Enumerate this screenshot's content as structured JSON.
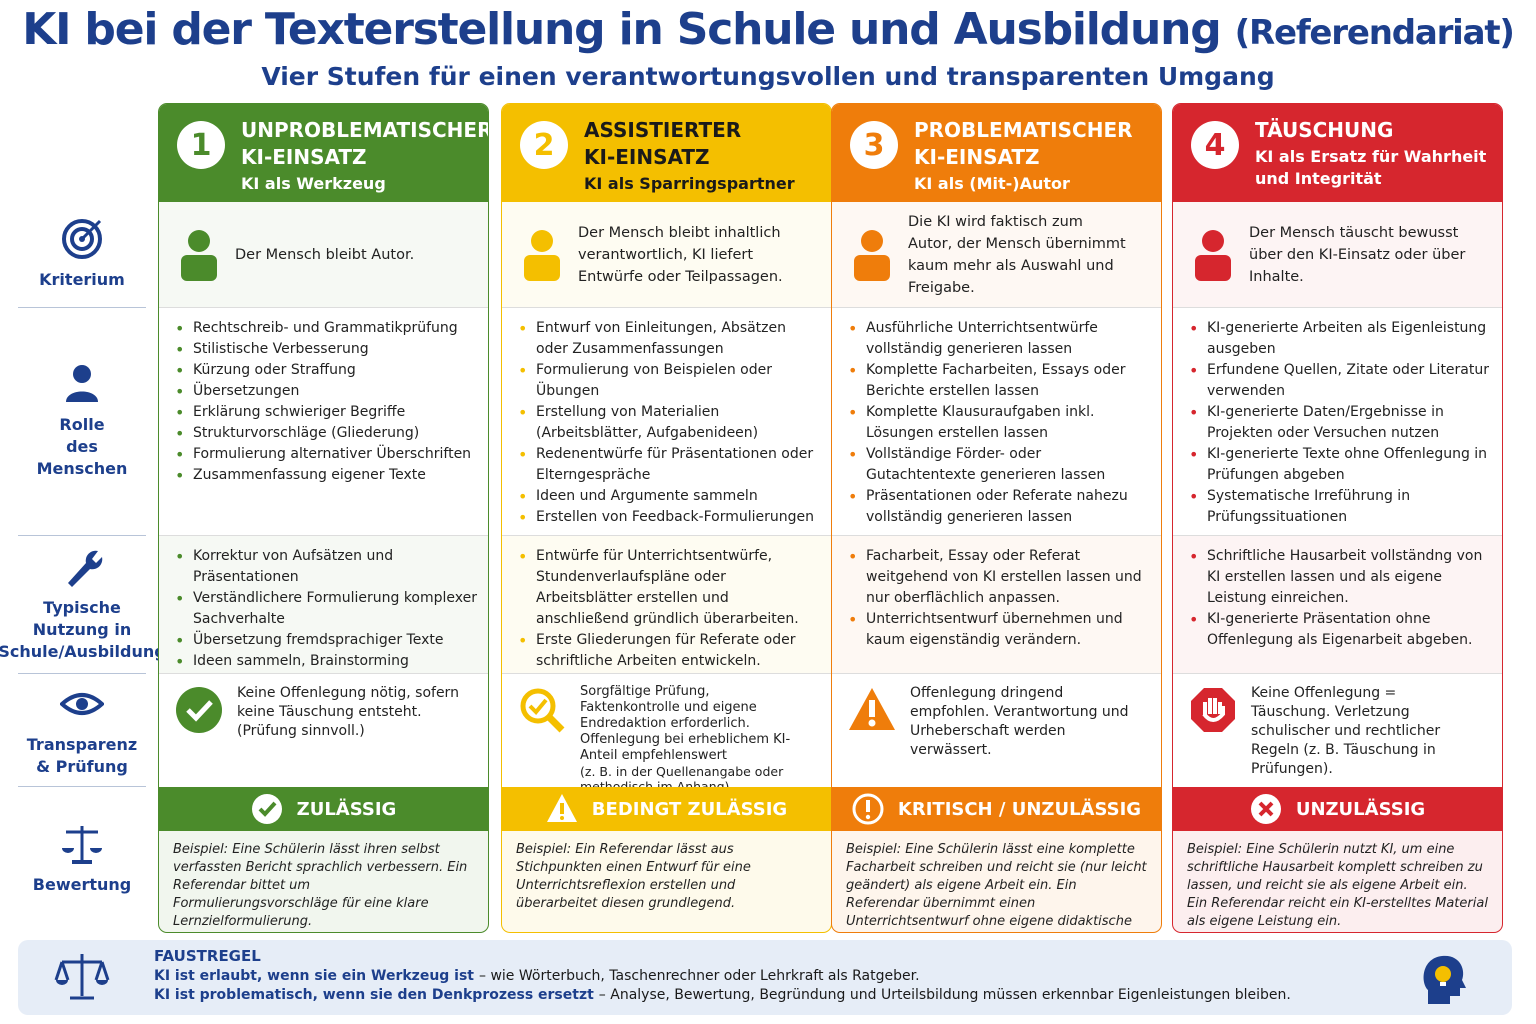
{
  "header": {
    "title": "KI bei der Texterstellung in Schule und Ausbildung",
    "title_suffix": "(Referendariat)",
    "subtitle": "Vier Stufen für einen verantwortungsvollen und transparenten Umgang"
  },
  "row_labels": [
    [
      "Kriterium"
    ],
    [
      "Rolle",
      "des Menschen"
    ],
    [
      "Typische",
      "Nutzung in",
      "Schule/Ausbildung"
    ],
    [
      "Transparenz",
      "& Prüfung"
    ],
    [
      "Bewertung"
    ]
  ],
  "columns": [
    {
      "number": "1",
      "color": "#4b8b2b",
      "header_text_color": "#ffffff",
      "title": [
        "UNPROBLEMATISCHER",
        "KI-EINSATZ"
      ],
      "subtitle": "KI als Werkzeug",
      "criterion": "Der Mensch bleibt Autor.",
      "roles": [
        "Rechtschreib- und Grammatikprüfung",
        "Stilistische Verbesserung",
        "Kürzung oder Straffung",
        "Übersetzungen",
        "Erklärung schwieriger Begriffe",
        "Strukturvorschläge (Gliederung)",
        "Formulierung alternativer Überschriften",
        "Zusammenfassung eigener Texte"
      ],
      "usage": [
        "Korrektur von Aufsätzen und Präsentationen",
        "Verständlichere Formulierung komplexer Sachverhalte",
        "Übersetzung fremdsprachiger Texte",
        "Ideen sammeln, Brainstorming"
      ],
      "transparency": [
        "Keine Offenlegung nötig, sofern keine Täuschung entsteht.",
        "(Prüfung sinnvoll.)"
      ],
      "verdict": "ZULÄSSIG",
      "example": "Beispiel: Eine Schülerin lässt ihren selbst verfassten Bericht sprachlich verbessern. Ein Referendar bittet um Formulierungsvorschläge für eine klare Lernzielformulierung."
    },
    {
      "number": "2",
      "color": "#f4bf00",
      "header_text_color": "#1a1a1a",
      "title": [
        "ASSISTIERTER",
        "KI-EINSATZ"
      ],
      "subtitle": "KI als Sparringspartner",
      "criterion": "Der Mensch bleibt inhaltlich verantwortlich, KI liefert Entwürfe oder Teilpassagen.",
      "roles": [
        "Entwurf von Einleitungen, Absätzen oder Zusammenfassungen",
        "Formulierung von Beispielen oder Übungen",
        "Erstellung von Materialien (Arbeitsblätter, Aufgabenideen)",
        "Redenentwürfe für Präsentationen oder Elterngespräche",
        "Ideen und Argumente sammeln",
        "Erstellen von Feedback-Formulierungen"
      ],
      "usage": [
        "Entwürfe für Unterrichtsentwürfe, Stundenverlaufspläne oder Arbeitsblätter erstellen und anschließend gründlich überarbeiten.",
        "Erste Gliederungen für Referate oder schriftliche Arbeiten entwickeln."
      ],
      "transparency": [
        "Sorgfältige Prüfung, Faktenkontrolle und eigene Endredaktion erforderlich. Offenlegung bei erheblichem KI-Anteil empfehlenswert",
        "(z. B. in der Quellenangabe oder methodisch im Anhang)."
      ],
      "verdict": "BEDINGT ZULÄSSIG",
      "example": "Beispiel: Ein Referendar lässt aus Stichpunkten einen Entwurf für eine Unterrichtsreflexion erstellen und überarbeitet diesen grundlegend."
    },
    {
      "number": "3",
      "color": "#ef7d0b",
      "header_text_color": "#ffffff",
      "title": [
        "PROBLEMATISCHER",
        "KI-EINSATZ"
      ],
      "subtitle": "KI als (Mit-)Autor",
      "criterion": "Die KI wird faktisch zum Autor, der Mensch übernimmt kaum mehr als Auswahl und Freigabe.",
      "roles": [
        "Ausführliche Unterrichtsentwürfe vollständig generieren lassen",
        "Komplette Facharbeiten, Essays oder Berichte erstellen lassen",
        "Komplette Klausuraufgaben inkl. Lösungen erstellen lassen",
        "Vollständige Förder- oder Gutachtentexte generieren lassen",
        "Präsentationen oder Referate nahezu vollständig generieren lassen"
      ],
      "usage": [
        "Facharbeit, Essay oder Referat weitgehend von KI erstellen lassen und nur oberflächlich anpassen.",
        "Unterrichtsentwurf übernehmen und kaum eigenständig verändern."
      ],
      "transparency": [
        "Offenlegung dringend empfohlen. Verantwortung und Urheberschaft werden verwässert."
      ],
      "verdict": "KRITISCH / UNZULÄSSIG",
      "example": "Beispiel: Eine Schülerin lässt eine komplette Facharbeit schreiben und reicht sie (nur leicht geändert) als eigene Arbeit ein. Ein Referendar übernimmt einen Unterrichtsentwurf ohne eigene didaktische Begründung."
    },
    {
      "number": "4",
      "color": "#d6262e",
      "header_text_color": "#ffffff",
      "title": [
        "TÄUSCHUNG"
      ],
      "subtitle": "KI als Ersatz für Wahrheit und Integrität",
      "criterion": "Der Mensch täuscht bewusst über den KI-Einsatz oder über Inhalte.",
      "roles": [
        "KI-generierte Arbeiten als Eigenleistung ausgeben",
        "Erfundene Quellen, Zitate oder Literatur verwenden",
        "KI-generierte Daten/Ergebnisse in Projekten oder Versuchen nutzen",
        "KI-generierte Texte ohne Offenlegung in Prüfungen abgeben",
        "Systematische Irreführung in Prüfungssituationen"
      ],
      "usage": [
        "Schriftliche Hausarbeit vollständng von KI erstellen lassen und als eigene Leistung einreichen.",
        "KI-generierte Präsentation ohne Offenlegung als Eigenarbeit abgeben."
      ],
      "transparency": [
        "Keine Offenlegung = Täuschung. Verletzung schulischer und rechtlicher Regeln (z. B. Täuschung in Prüfungen)."
      ],
      "verdict": "UNZULÄSSIG",
      "example": "Beispiel: Eine Schülerin nutzt KI, um eine schriftliche Hausarbeit komplett schreiben zu lassen, und reicht sie als eigene Arbeit ein. Ein Referendar reicht ein KI-erstelltes Material als eigene Leistung ein."
    }
  ],
  "footer": {
    "title": "FAUSTREGEL",
    "rules": [
      {
        "bold": "KI ist erlaubt, wenn sie ein Werkzeug ist",
        "rest": "– wie Wörterbuch, Taschenrechner oder Lehrkraft als Ratgeber."
      },
      {
        "bold": "KI ist problematisch, wenn sie den Denkprozess ersetzt",
        "rest": "– Analyse, Bewertung, Begründung und Urteilsbildung müssen erkennbar Eigenleistungen bleiben."
      }
    ]
  }
}
